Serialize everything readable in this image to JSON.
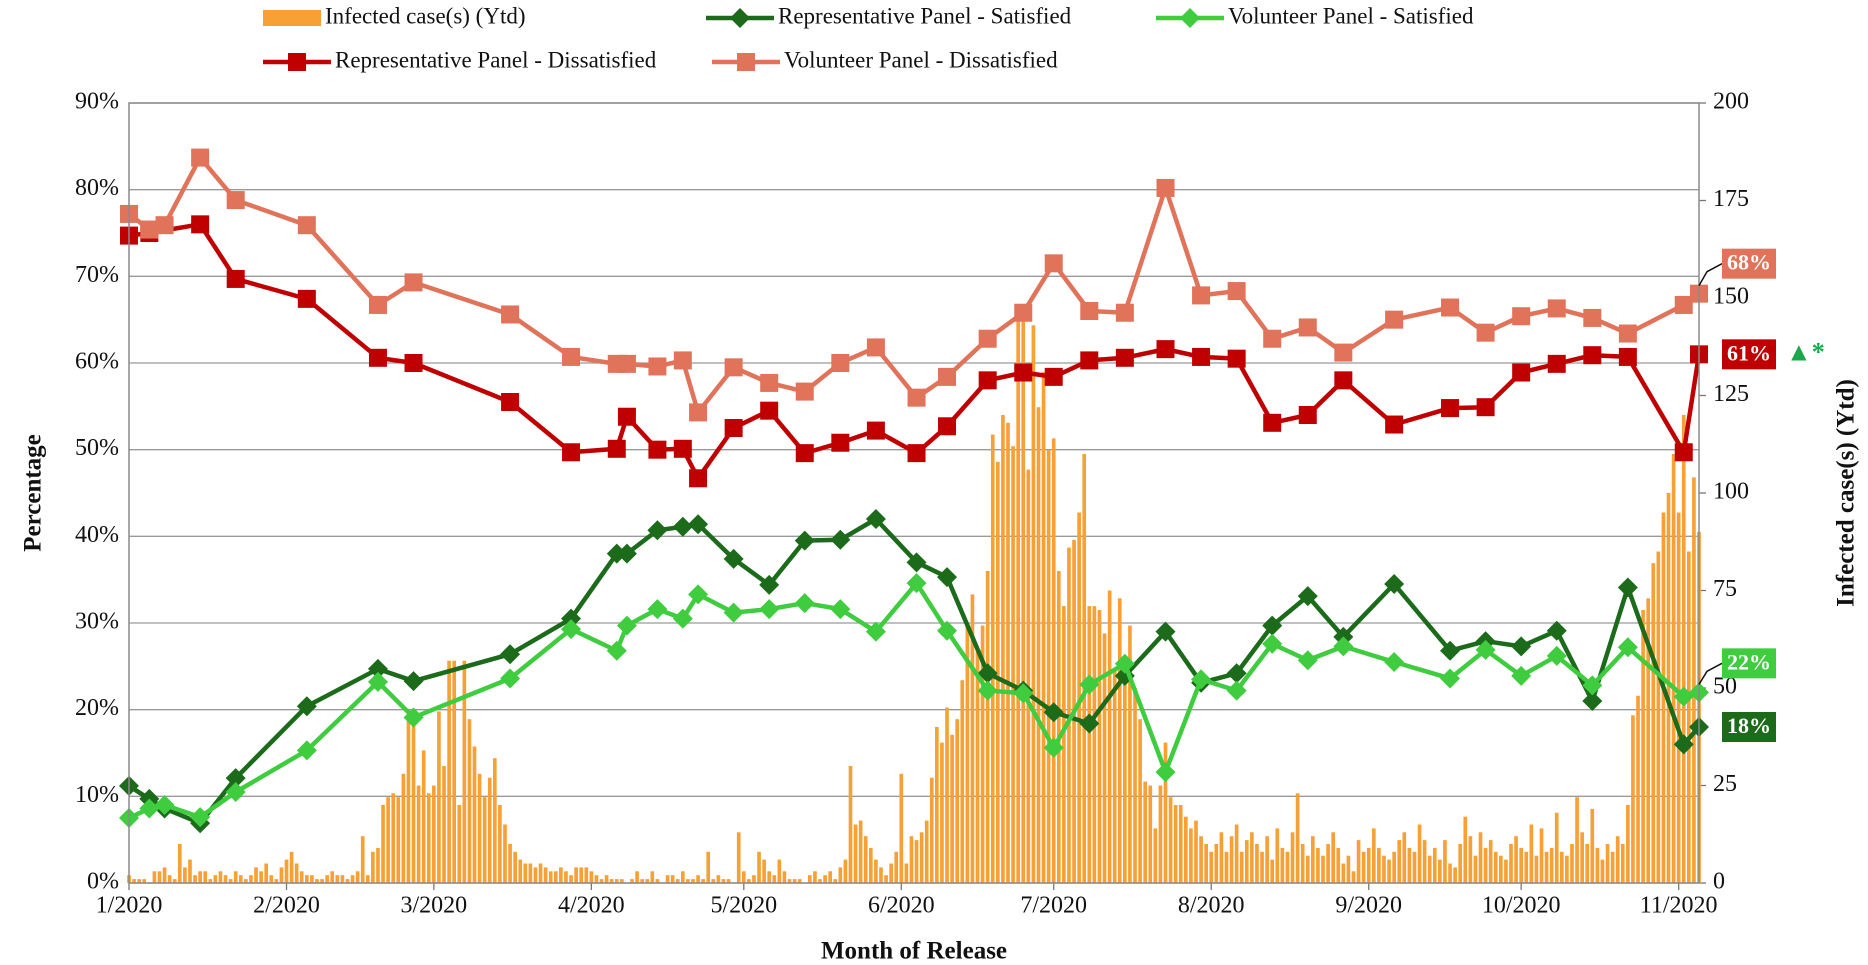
{
  "chart_data": {
    "type": "combo",
    "xlabel": "Month of Release",
    "ylabel": "Percentage",
    "y2label": "Infected case(s) (Ytd)",
    "xlim": [
      0,
      309
    ],
    "xticks": [
      {
        "value": 0,
        "label": "1/2020"
      },
      {
        "value": 31,
        "label": "2/2020"
      },
      {
        "value": 60,
        "label": "3/2020"
      },
      {
        "value": 91,
        "label": "4/2020"
      },
      {
        "value": 121,
        "label": "5/2020"
      },
      {
        "value": 152,
        "label": "6/2020"
      },
      {
        "value": 182,
        "label": "7/2020"
      },
      {
        "value": 213,
        "label": "8/2020"
      },
      {
        "value": 244,
        "label": "9/2020"
      },
      {
        "value": 274,
        "label": "10/2020"
      },
      {
        "value": 305,
        "label": "11/2020"
      }
    ],
    "ylim": [
      0,
      90
    ],
    "yticks": [
      {
        "value": 0,
        "label": "0%"
      },
      {
        "value": 10,
        "label": "10%"
      },
      {
        "value": 20,
        "label": "20%"
      },
      {
        "value": 30,
        "label": "30%"
      },
      {
        "value": 40,
        "label": "40%"
      },
      {
        "value": 50,
        "label": "50%"
      },
      {
        "value": 60,
        "label": "60%"
      },
      {
        "value": 70,
        "label": "70%"
      },
      {
        "value": 80,
        "label": "80%"
      },
      {
        "value": 90,
        "label": "90%"
      }
    ],
    "y2lim": [
      0,
      200
    ],
    "y2ticks": [
      0,
      25,
      50,
      75,
      100,
      125,
      150,
      175,
      200
    ],
    "grid": true,
    "annotation": "▲*",
    "annotation_color": "#1aa84a",
    "series": [
      {
        "name": "Infected case(s) (Ytd)",
        "type": "bar",
        "axis": "y2",
        "color": "#f7a035",
        "x": [
          0,
          1,
          2,
          3,
          4,
          5,
          6,
          7,
          8,
          9,
          10,
          11,
          12,
          13,
          14,
          15,
          16,
          17,
          18,
          19,
          20,
          21,
          22,
          23,
          24,
          25,
          26,
          27,
          28,
          29,
          30,
          31,
          32,
          33,
          34,
          35,
          36,
          37,
          38,
          39,
          40,
          41,
          42,
          43,
          44,
          45,
          46,
          47,
          48,
          49,
          50,
          51,
          52,
          53,
          54,
          55,
          56,
          57,
          58,
          59,
          60,
          61,
          62,
          63,
          64,
          65,
          66,
          67,
          68,
          69,
          70,
          71,
          72,
          73,
          74,
          75,
          76,
          77,
          78,
          79,
          80,
          81,
          82,
          83,
          84,
          85,
          86,
          87,
          88,
          89,
          90,
          91,
          92,
          93,
          94,
          95,
          96,
          97,
          98,
          99,
          100,
          101,
          102,
          103,
          104,
          105,
          106,
          107,
          108,
          109,
          110,
          111,
          112,
          113,
          114,
          115,
          116,
          117,
          118,
          119,
          120,
          121,
          122,
          123,
          124,
          125,
          126,
          127,
          128,
          129,
          130,
          131,
          132,
          133,
          134,
          135,
          136,
          137,
          138,
          139,
          140,
          141,
          142,
          143,
          144,
          145,
          146,
          147,
          148,
          149,
          150,
          151,
          152,
          153,
          154,
          155,
          156,
          157,
          158,
          159,
          160,
          161,
          162,
          163,
          164,
          165,
          166,
          167,
          168,
          169,
          170,
          171,
          172,
          173,
          174,
          175,
          176,
          177,
          178,
          179,
          180,
          181,
          182,
          183,
          184,
          185,
          186,
          187,
          188,
          189,
          190,
          191,
          192,
          193,
          194,
          195,
          196,
          197,
          198,
          199,
          200,
          201,
          202,
          203,
          204,
          205,
          206,
          207,
          208,
          209,
          210,
          211,
          212,
          213,
          214,
          215,
          216,
          217,
          218,
          219,
          220,
          221,
          222,
          223,
          224,
          225,
          226,
          227,
          228,
          229,
          230,
          231,
          232,
          233,
          234,
          235,
          236,
          237,
          238,
          239,
          240,
          241,
          242,
          243,
          244,
          245,
          246,
          247,
          248,
          249,
          250,
          251,
          252,
          253,
          254,
          255,
          256,
          257,
          258,
          259,
          260,
          261,
          262,
          263,
          264,
          265,
          266,
          267,
          268,
          269,
          270,
          271,
          272,
          273,
          274,
          275,
          276,
          277,
          278,
          279,
          280,
          281,
          282,
          283,
          284,
          285,
          286,
          287,
          288,
          289,
          290,
          291,
          292,
          293,
          294,
          295,
          296,
          297,
          298,
          299,
          300,
          301,
          302,
          303,
          304,
          305,
          306,
          307,
          308,
          309
        ],
        "values": [
          2,
          1,
          1,
          1,
          0,
          3,
          3,
          4,
          2,
          1,
          10,
          4,
          6,
          2,
          3,
          3,
          1,
          2,
          3,
          2,
          1,
          3,
          2,
          1,
          2,
          4,
          3,
          5,
          2,
          1,
          4,
          6,
          8,
          5,
          3,
          2,
          2,
          1,
          1,
          2,
          3,
          2,
          2,
          1,
          2,
          3,
          12,
          2,
          8,
          9,
          20,
          22,
          23,
          22,
          28,
          44,
          44,
          25,
          34,
          23,
          25,
          44,
          30,
          57,
          57,
          20,
          57,
          42,
          35,
          28,
          22,
          27,
          32,
          20,
          15,
          10,
          8,
          6,
          5,
          5,
          4,
          5,
          4,
          3,
          3,
          4,
          3,
          2,
          4,
          4,
          4,
          3,
          2,
          1,
          2,
          1,
          1,
          1,
          0,
          1,
          3,
          1,
          1,
          3,
          1,
          0,
          2,
          2,
          1,
          3,
          1,
          1,
          2,
          1,
          8,
          1,
          2,
          1,
          1,
          0,
          13,
          3,
          1,
          2,
          8,
          6,
          3,
          2,
          6,
          3,
          1,
          1,
          1,
          0,
          2,
          3,
          1,
          2,
          3,
          1,
          4,
          6,
          30,
          15,
          16,
          12,
          9,
          6,
          4,
          2,
          5,
          8,
          28,
          5,
          12,
          11,
          13,
          16,
          27,
          40,
          36,
          45,
          38,
          42,
          52,
          66,
          74,
          60,
          66,
          80,
          115,
          108,
          120,
          118,
          112,
          145,
          145,
          106,
          143,
          122,
          131,
          111,
          114,
          80,
          71,
          86,
          88,
          95,
          110,
          71,
          71,
          70,
          64,
          75,
          55,
          73,
          56,
          66,
          50,
          42,
          26,
          25,
          14,
          25,
          36,
          22,
          20,
          20,
          17,
          14,
          16,
          12,
          10,
          8,
          10,
          13,
          8,
          12,
          15,
          8,
          11,
          13,
          10,
          8,
          12,
          6,
          14,
          9,
          8,
          13,
          23,
          10,
          7,
          12,
          9,
          7,
          10,
          13,
          9,
          5,
          7,
          3,
          11,
          8,
          9,
          14,
          9,
          7,
          6,
          8,
          11,
          13,
          9,
          8,
          15,
          11,
          7,
          9,
          6,
          11,
          5,
          4,
          10,
          17,
          12,
          7,
          13,
          9,
          11,
          8,
          7,
          6,
          10,
          12,
          9,
          8,
          15,
          7,
          14,
          8,
          9,
          18,
          8,
          7,
          10,
          22,
          13,
          10,
          19,
          9,
          6,
          10,
          8,
          12,
          10,
          20,
          43,
          48,
          70,
          73,
          82,
          85,
          95,
          100,
          110,
          95,
          120,
          85,
          104,
          90
        ]
      },
      {
        "name": "Representative Panel - Satisfied",
        "type": "line",
        "marker": "diamond",
        "color": "#1b6b1b",
        "last_label": "18%",
        "x": [
          0,
          4,
          7,
          14,
          21,
          35,
          49,
          56,
          75,
          87,
          96,
          98,
          104,
          109,
          112,
          119,
          126,
          133,
          140,
          147,
          155,
          161,
          169,
          176,
          182,
          189,
          196,
          204,
          211,
          218,
          225,
          232,
          239,
          249,
          260,
          267,
          274,
          281,
          288,
          295,
          306,
          309
        ],
        "values": [
          11.2,
          9.7,
          8.6,
          6.9,
          12.1,
          20.4,
          24.7,
          23.3,
          26.4,
          30.5,
          38,
          38,
          40.7,
          41.1,
          41.4,
          37.4,
          34.4,
          39.5,
          39.6,
          42,
          37,
          35.3,
          24.2,
          22.2,
          19.7,
          18.4,
          23.9,
          29,
          23.1,
          24.2,
          29.7,
          33.1,
          28.4,
          34.5,
          26.8,
          27.9,
          27.3,
          29.1,
          21,
          34.1,
          16,
          18
        ]
      },
      {
        "name": "Volunteer Panel - Satisfied",
        "type": "line",
        "marker": "diamond",
        "color": "#3fcc3f",
        "last_label": "22%",
        "x": [
          0,
          4,
          7,
          14,
          21,
          35,
          49,
          56,
          75,
          87,
          96,
          98,
          104,
          109,
          112,
          119,
          126,
          133,
          140,
          147,
          155,
          161,
          169,
          176,
          182,
          189,
          196,
          204,
          211,
          218,
          225,
          232,
          239,
          249,
          260,
          267,
          274,
          281,
          288,
          295,
          306,
          309
        ],
        "values": [
          7.5,
          8.6,
          9,
          7.6,
          10.5,
          15.3,
          23.2,
          19.1,
          23.6,
          29.3,
          26.8,
          29.7,
          31.6,
          30.5,
          33.3,
          31.2,
          31.6,
          32.3,
          31.6,
          29,
          34.6,
          29.1,
          22.2,
          21.9,
          15.6,
          22.9,
          25.3,
          12.8,
          23.5,
          22.2,
          27.6,
          25.7,
          27.3,
          25.5,
          23.6,
          26.9,
          23.9,
          26.2,
          22.8,
          27.2,
          21.5,
          22
        ]
      },
      {
        "name": "Representative Panel - Dissatisfied",
        "type": "line",
        "marker": "square",
        "color": "#c00000",
        "last_label": "61%",
        "x": [
          0,
          4,
          14,
          21,
          35,
          49,
          56,
          75,
          87,
          96,
          98,
          104,
          109,
          112,
          119,
          126,
          133,
          140,
          147,
          155,
          161,
          169,
          176,
          182,
          189,
          196,
          204,
          211,
          218,
          225,
          232,
          239,
          249,
          260,
          267,
          274,
          281,
          288,
          295,
          306,
          309
        ],
        "values": [
          74.7,
          75,
          76,
          69.7,
          67.4,
          60.6,
          60,
          55.5,
          49.7,
          50.1,
          53.8,
          50,
          50.1,
          46.7,
          52.5,
          54.5,
          49.6,
          50.8,
          52.2,
          49.6,
          52.7,
          58,
          58.9,
          58.4,
          60.3,
          60.6,
          61.6,
          60.7,
          60.5,
          53.1,
          54,
          58,
          52.9,
          54.8,
          54.9,
          58.9,
          59.9,
          60.9,
          60.7,
          49.7,
          61
        ]
      },
      {
        "name": "Volunteer Panel - Dissatisfied",
        "type": "line",
        "marker": "square",
        "color": "#e0735a",
        "last_label": "68%",
        "x": [
          0,
          4,
          7,
          14,
          21,
          35,
          49,
          56,
          75,
          87,
          96,
          98,
          104,
          109,
          112,
          119,
          126,
          133,
          140,
          147,
          155,
          161,
          169,
          176,
          182,
          189,
          196,
          204,
          211,
          218,
          225,
          232,
          239,
          249,
          260,
          267,
          274,
          281,
          288,
          295,
          306,
          309
        ],
        "values": [
          77.2,
          75.4,
          75.9,
          83.7,
          78.8,
          75.9,
          66.7,
          69.3,
          65.6,
          60.7,
          59.9,
          59.9,
          59.6,
          60.3,
          54.3,
          59.5,
          57.7,
          56.7,
          60,
          61.8,
          56,
          58.4,
          62.8,
          65.8,
          71.5,
          66,
          65.8,
          80.2,
          67.8,
          68.3,
          62.8,
          64.1,
          61.2,
          65,
          66.4,
          63.5,
          65.4,
          66.3,
          65.2,
          63.4,
          66.7,
          68
        ]
      }
    ]
  }
}
